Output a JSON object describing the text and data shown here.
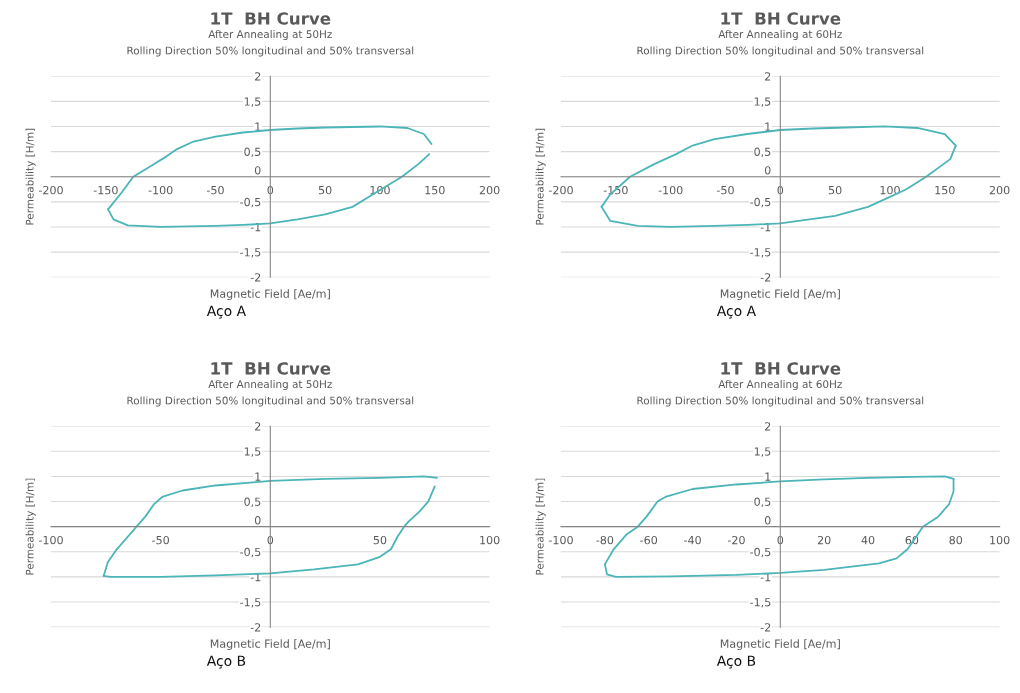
{
  "chart_data": [
    {
      "type": "line",
      "title": "1T  BH Curve",
      "subtitle": "After Annealing at 50Hz\nRolling Direction 50% longitudinal and 50% transversal",
      "xlabel": "Magnetic Field [Ae/m]",
      "ylabel": "Permeability [H/m]",
      "annotations": [
        "Aço A"
      ],
      "xlim": [
        -200,
        200
      ],
      "xticks": [
        -200,
        -150,
        -100,
        -50,
        0,
        50,
        100,
        150,
        200
      ],
      "ylim": [
        -2,
        2
      ],
      "yticks": [
        {
          "value": -2,
          "label": "-2"
        },
        {
          "value": -1.5,
          "label": "-1,5"
        },
        {
          "value": -1,
          "label": "-1"
        },
        {
          "value": -0.5,
          "label": "-0,5"
        },
        {
          "value": 0,
          "label": "0"
        },
        {
          "value": 0.5,
          "label": "0,5"
        },
        {
          "value": 1,
          "label": "1"
        },
        {
          "value": 1.5,
          "label": "1,5"
        },
        {
          "value": 2,
          "label": "2"
        }
      ],
      "grid": "y",
      "legend": false,
      "marker": "none",
      "line_style": "solid",
      "series": [
        {
          "color": "#4bb5b8",
          "x": [
            -148,
            -135,
            -125,
            -110,
            -95,
            -85,
            -70,
            -50,
            -25,
            0,
            25,
            50,
            75,
            100,
            125,
            140,
            147
          ],
          "values": [
            -0.65,
            -0.3,
            0,
            0.2,
            0.4,
            0.55,
            0.7,
            0.8,
            0.88,
            0.93,
            0.96,
            0.98,
            0.99,
            1.0,
            0.97,
            0.85,
            0.65
          ]
        },
        {
          "color": "#4bb5b8",
          "x": [
            -148,
            -143,
            -130,
            -100,
            -50,
            -25,
            0,
            25,
            50,
            75,
            90,
            105,
            120,
            135,
            145
          ],
          "values": [
            -0.65,
            -0.85,
            -0.97,
            -1.0,
            -0.98,
            -0.96,
            -0.93,
            -0.85,
            -0.75,
            -0.6,
            -0.4,
            -0.2,
            0,
            0.25,
            0.45
          ]
        }
      ]
    },
    {
      "type": "line",
      "title": "1T  BH Curve",
      "subtitle": "After Annealing at 60Hz\nRolling Direction 50% longitudinal and 50% transversal",
      "xlabel": "Magnetic Field [Ae/m]",
      "ylabel": "Permeability [H/m]",
      "annotations": [
        "Aço A"
      ],
      "xlim": [
        -200,
        200
      ],
      "xticks": [
        -200,
        -150,
        -100,
        -50,
        0,
        50,
        100,
        150,
        200
      ],
      "ylim": [
        -2,
        2
      ],
      "yticks": [
        {
          "value": -2,
          "label": "-2"
        },
        {
          "value": -1.5,
          "label": "-1,5"
        },
        {
          "value": -1,
          "label": "-1"
        },
        {
          "value": -0.5,
          "label": "-0,5"
        },
        {
          "value": 0,
          "label": "0"
        },
        {
          "value": 0.5,
          "label": "0,5"
        },
        {
          "value": 1,
          "label": "1"
        },
        {
          "value": 1.5,
          "label": "1,5"
        },
        {
          "value": 2,
          "label": "2"
        }
      ],
      "grid": "y",
      "legend": false,
      "marker": "none",
      "line_style": "solid",
      "series": [
        {
          "color": "#4bb5b8",
          "x": [
            -163,
            -155,
            -137,
            -115,
            -95,
            -80,
            -60,
            -30,
            0,
            30,
            60,
            95,
            125,
            150,
            160
          ],
          "values": [
            -0.6,
            -0.35,
            0,
            0.25,
            0.45,
            0.62,
            0.75,
            0.85,
            0.93,
            0.96,
            0.98,
            1.0,
            0.97,
            0.85,
            0.62
          ]
        },
        {
          "color": "#4bb5b8",
          "x": [
            -163,
            -155,
            -130,
            -100,
            -60,
            -30,
            0,
            20,
            50,
            80,
            100,
            115,
            133,
            155,
            160
          ],
          "values": [
            -0.6,
            -0.88,
            -0.98,
            -1.0,
            -0.98,
            -0.96,
            -0.93,
            -0.87,
            -0.78,
            -0.6,
            -0.4,
            -0.25,
            0,
            0.35,
            0.62
          ]
        }
      ]
    },
    {
      "type": "line",
      "title": "1T  BH Curve",
      "subtitle": "After Annealing at 50Hz\nRolling Direction 50% longitudinal and 50% transversal",
      "xlabel": "Magnetic Field [Ae/m]",
      "ylabel": "Permeability [H/m]",
      "annotations": [
        "Aço B"
      ],
      "xlim": [
        -100,
        100
      ],
      "xticks": [
        -100,
        -50,
        0,
        50,
        100
      ],
      "ylim": [
        -2,
        2
      ],
      "yticks": [
        {
          "value": -2,
          "label": "-2"
        },
        {
          "value": -1.5,
          "label": "-1,5"
        },
        {
          "value": -1,
          "label": "-1"
        },
        {
          "value": -0.5,
          "label": "-0,5"
        },
        {
          "value": 0,
          "label": "0"
        },
        {
          "value": 0.5,
          "label": "0,5"
        },
        {
          "value": 1,
          "label": "1"
        },
        {
          "value": 1.5,
          "label": "1,5"
        },
        {
          "value": 2,
          "label": "2"
        }
      ],
      "grid": "y",
      "legend": false,
      "marker": "none",
      "line_style": "solid",
      "series": [
        {
          "color": "#4bb5b8",
          "x": [
            -76,
            -74,
            -70,
            -65,
            -61,
            -57,
            -53,
            -49,
            -40,
            -25,
            0,
            25,
            50,
            70,
            76
          ],
          "values": [
            -0.98,
            -0.7,
            -0.45,
            -0.2,
            0,
            0.2,
            0.45,
            0.6,
            0.72,
            0.82,
            0.91,
            0.95,
            0.97,
            1.0,
            0.97
          ]
        },
        {
          "color": "#4bb5b8",
          "x": [
            -76,
            -73,
            -50,
            -25,
            0,
            20,
            40,
            50,
            55,
            58,
            61,
            63,
            68,
            72,
            75
          ],
          "values": [
            -0.98,
            -1.0,
            -1.0,
            -0.97,
            -0.93,
            -0.85,
            -0.75,
            -0.6,
            -0.45,
            -0.2,
            0,
            0.1,
            0.3,
            0.5,
            0.8
          ]
        }
      ]
    },
    {
      "type": "line",
      "title": "1T  BH Curve",
      "subtitle": "After Annealing at 60Hz\nRolling Direction 50% longitudinal and 50% transversal",
      "xlabel": "Magnetic Field [Ae/m]",
      "ylabel": "Permeability [H/m]",
      "annotations": [
        "Aço B"
      ],
      "xlim": [
        -100,
        100
      ],
      "xticks": [
        -100,
        -80,
        -60,
        -40,
        -20,
        0,
        20,
        40,
        60,
        80,
        100
      ],
      "ylim": [
        -2,
        2
      ],
      "yticks": [
        {
          "value": -2,
          "label": "-2"
        },
        {
          "value": -1.5,
          "label": "-1,5"
        },
        {
          "value": -1,
          "label": "-1"
        },
        {
          "value": -0.5,
          "label": "-0,5"
        },
        {
          "value": 0,
          "label": "0"
        },
        {
          "value": 0.5,
          "label": "0,5"
        },
        {
          "value": 1,
          "label": "1"
        },
        {
          "value": 1.5,
          "label": "1,5"
        },
        {
          "value": 2,
          "label": "2"
        }
      ],
      "grid": "y",
      "legend": false,
      "marker": "none",
      "line_style": "solid",
      "series": [
        {
          "color": "#4bb5b8",
          "x": [
            -80,
            -76,
            -70,
            -65,
            -61,
            -56,
            -52,
            -40,
            -20,
            0,
            20,
            40,
            60,
            75,
            79
          ],
          "values": [
            -0.75,
            -0.45,
            -0.15,
            0,
            0.2,
            0.5,
            0.6,
            0.75,
            0.84,
            0.9,
            0.94,
            0.97,
            0.99,
            1.0,
            0.95
          ]
        },
        {
          "color": "#4bb5b8",
          "x": [
            -80,
            -79,
            -75,
            -50,
            -20,
            0,
            20,
            45,
            53,
            58,
            62,
            65,
            72,
            77,
            79,
            79
          ],
          "values": [
            -0.75,
            -0.95,
            -1.0,
            -0.99,
            -0.96,
            -0.92,
            -0.86,
            -0.73,
            -0.63,
            -0.45,
            -0.2,
            0,
            0.2,
            0.45,
            0.7,
            0.95
          ]
        }
      ]
    }
  ]
}
